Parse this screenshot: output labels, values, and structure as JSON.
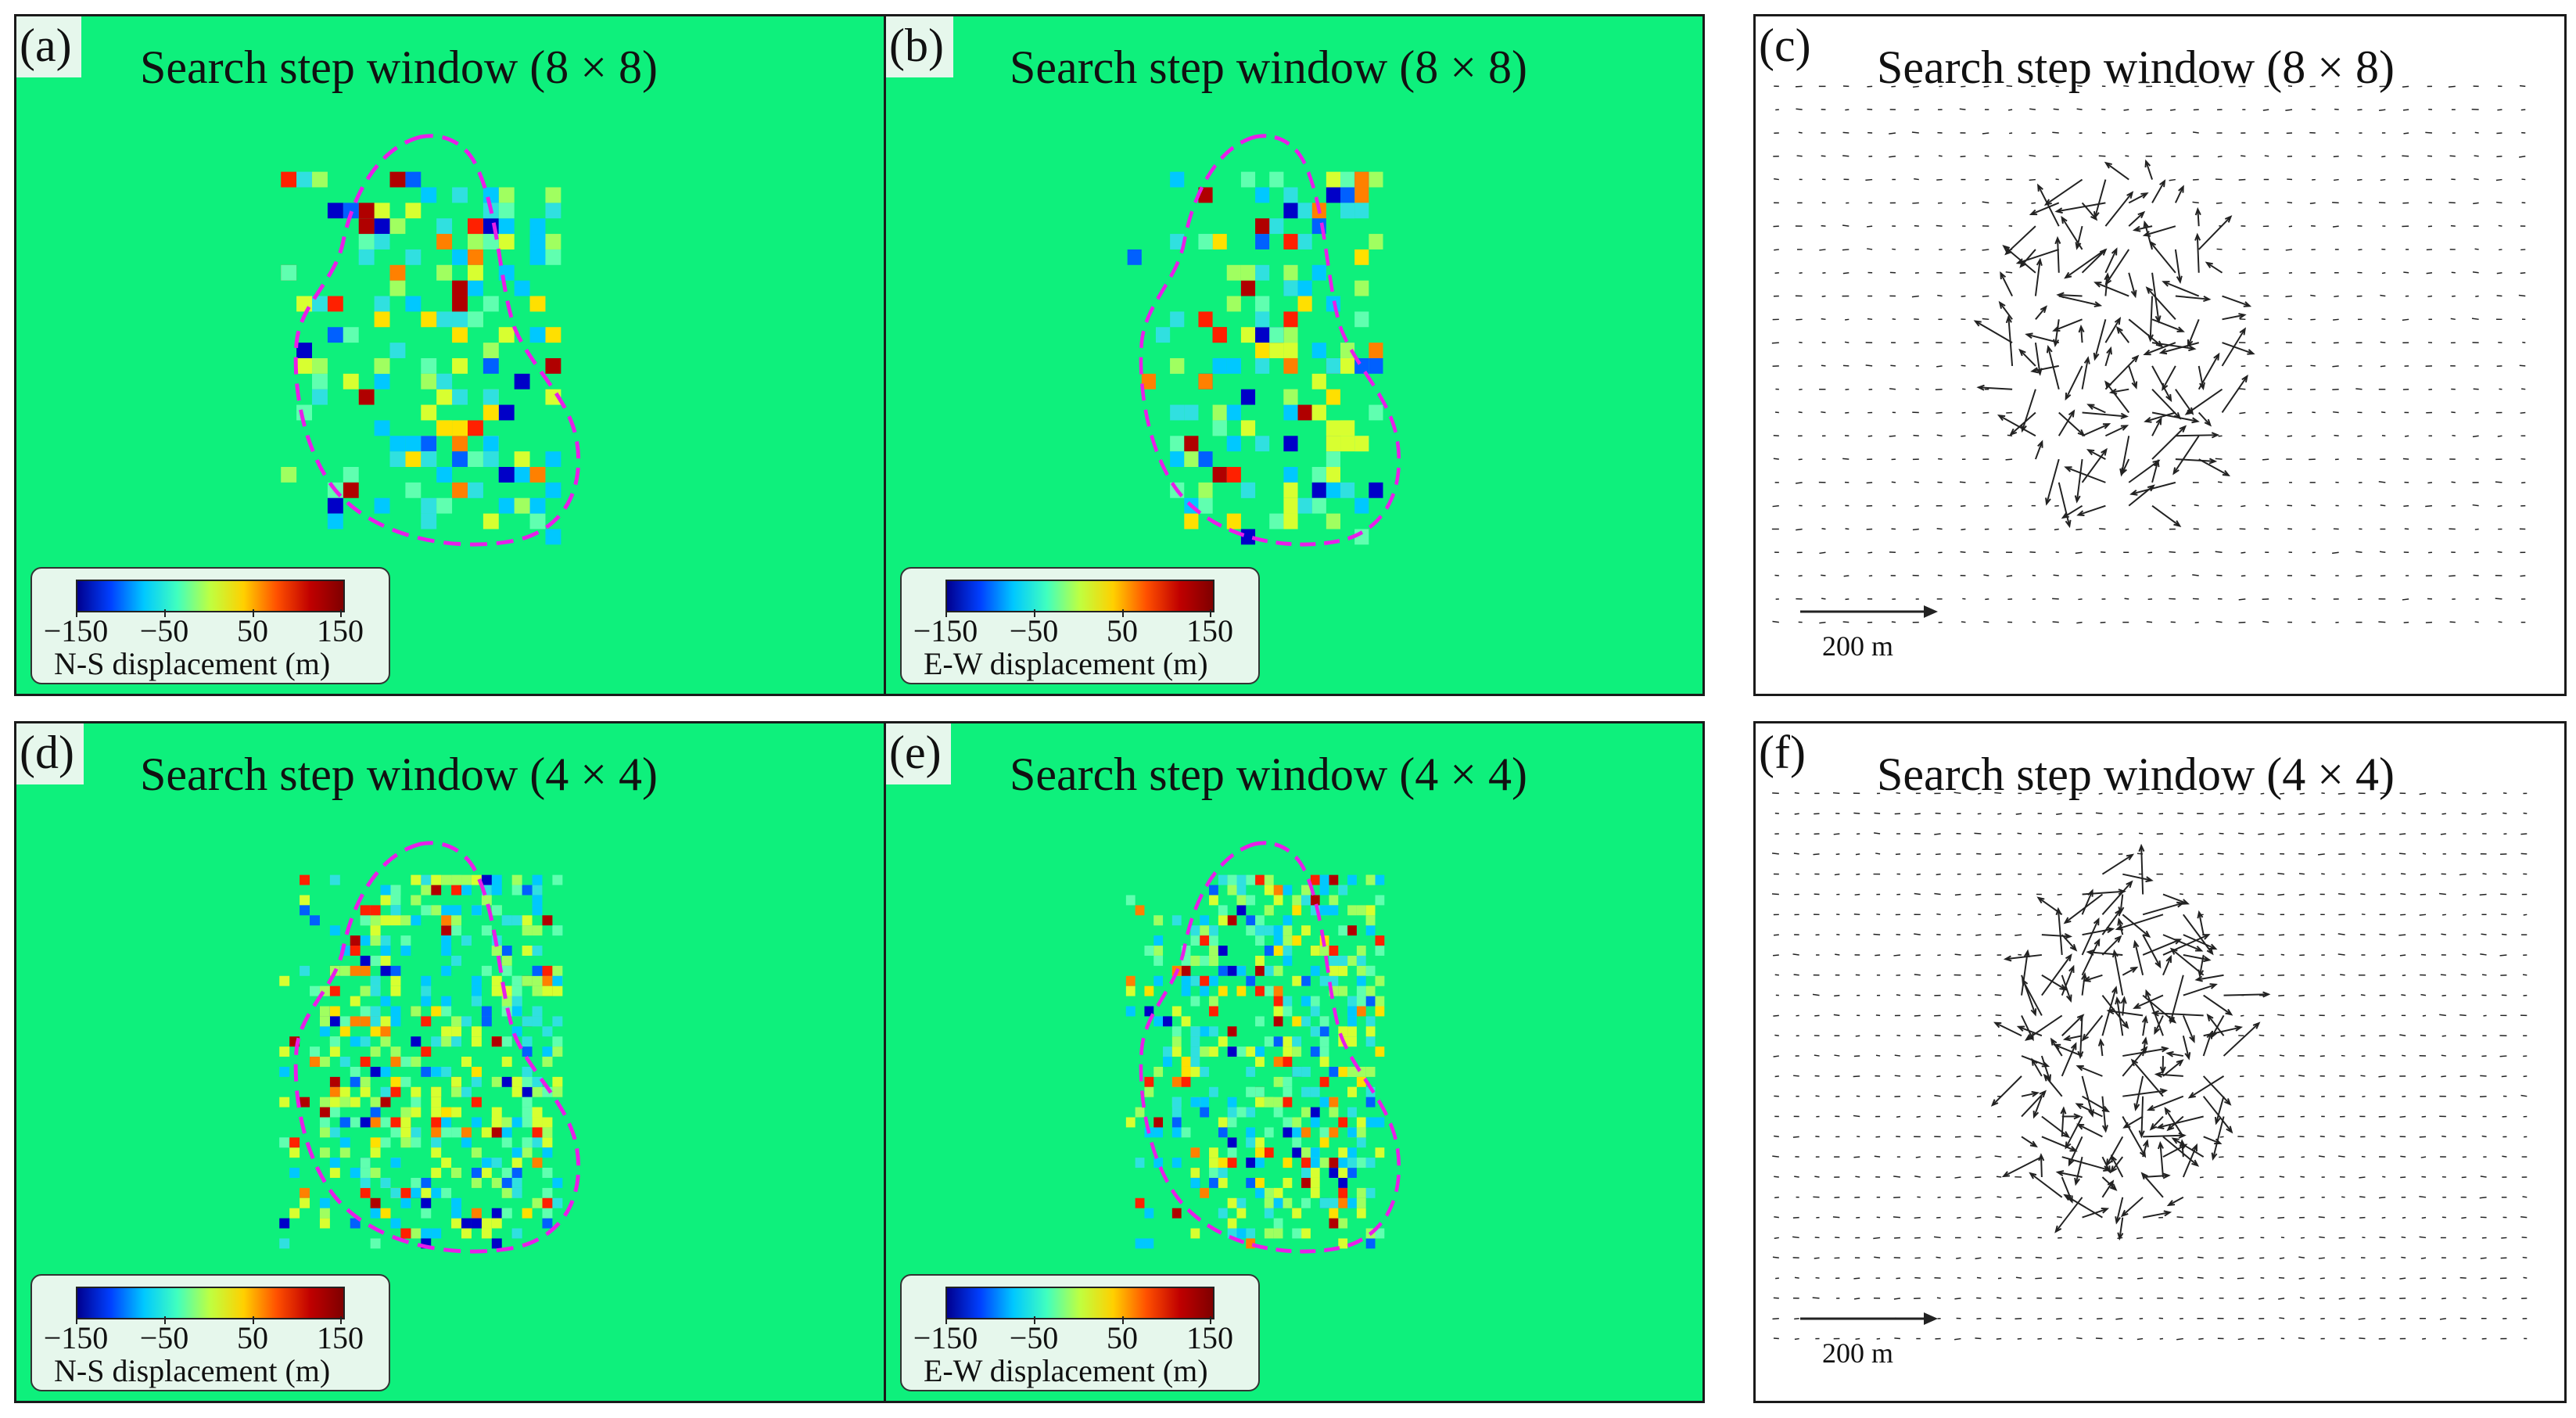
{
  "panels": [
    {
      "label": "(a)",
      "title": "Search step window (8 × 8)",
      "legend": {
        "title": "N-S displacement (m)",
        "ticks": [
          "−150",
          "−50",
          "50",
          "150"
        ]
      }
    },
    {
      "label": "(b)",
      "title": "Search step window (8 × 8)",
      "legend": {
        "title": "E-W displacement (m)",
        "ticks": [
          "−150",
          "−50",
          "50",
          "150"
        ]
      }
    },
    {
      "label": "(c)",
      "title": "Search step window (8 × 8)",
      "scale_label": "200 m"
    },
    {
      "label": "(d)",
      "title": "Search step window (4 × 4)",
      "legend": {
        "title": "N-S displacement (m)",
        "ticks": [
          "−150",
          "−50",
          "50",
          "150"
        ]
      }
    },
    {
      "label": "(e)",
      "title": "Search step window (4 × 4)",
      "legend": {
        "title": "E-W displacement (m)",
        "ticks": [
          "−150",
          "−50",
          "50",
          "150"
        ]
      }
    },
    {
      "label": "(f)",
      "title": "Search step window (4 × 4)",
      "scale_label": "200 m"
    }
  ],
  "colors": {
    "background_field": "#0ef07c",
    "boundary": "#e81ee8",
    "arrow": "#222222",
    "legend_bg": "#e6f7ec"
  }
}
